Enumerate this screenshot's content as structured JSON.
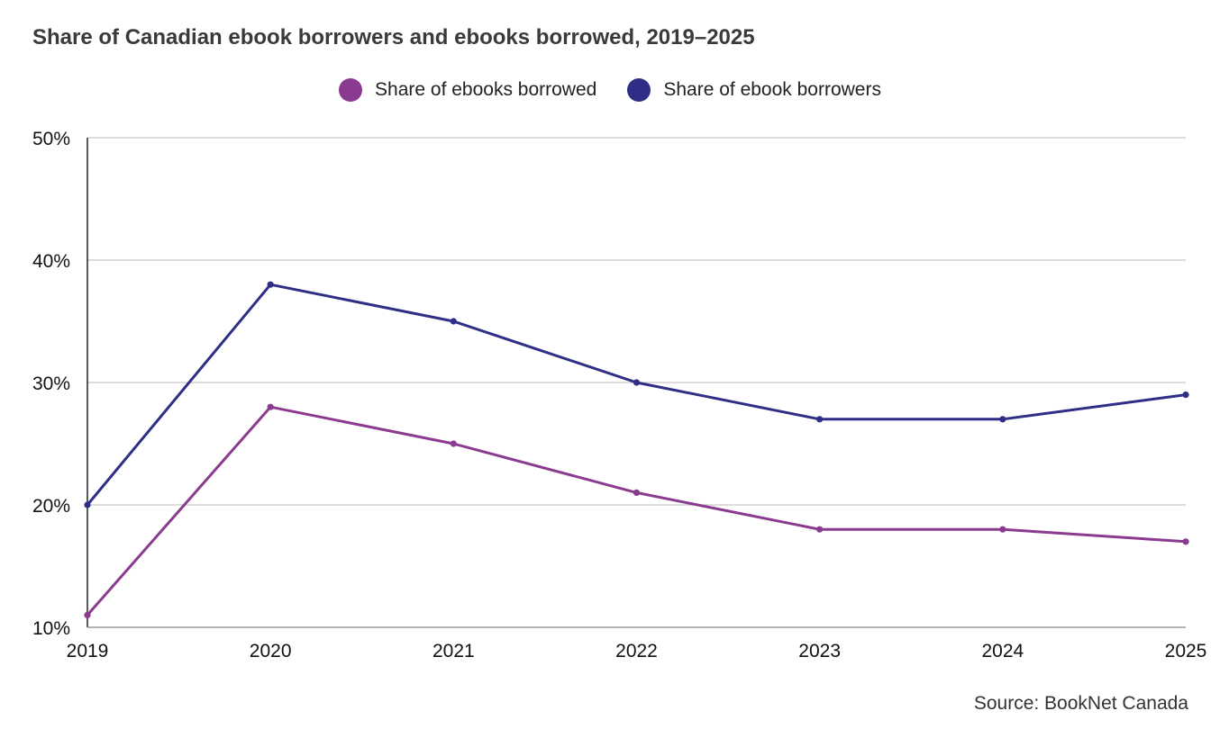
{
  "chart_data": {
    "type": "line",
    "title": "Share of Canadian ebook borrowers and ebooks borrowed, 2019–2025",
    "x": [
      2019,
      2020,
      2021,
      2022,
      2023,
      2024,
      2025
    ],
    "x_tick_labels": [
      "2019",
      "2020",
      "2021",
      "2022",
      "2023",
      "2024",
      "2025"
    ],
    "ylim": [
      10,
      50
    ],
    "y_ticks": [
      10,
      20,
      30,
      40,
      50
    ],
    "y_tick_labels": [
      "10%",
      "20%",
      "30%",
      "40%",
      "50%"
    ],
    "xlabel": "",
    "ylabel": "",
    "grid": true,
    "legend_position": "top-center",
    "series": [
      {
        "name": "Share of ebooks borrowed",
        "color": "#8a3a8f",
        "values": [
          11,
          28,
          25,
          21,
          18,
          18,
          17
        ]
      },
      {
        "name": "Share of ebook borrowers",
        "color": "#2e2e86",
        "values": [
          20,
          38,
          35,
          30,
          27,
          27,
          29
        ]
      }
    ],
    "source": "Source: BookNet Canada"
  }
}
